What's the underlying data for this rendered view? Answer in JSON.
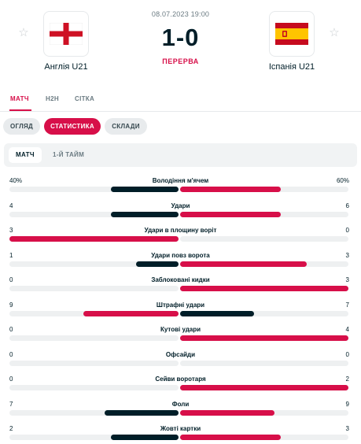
{
  "match": {
    "datetime": "08.07.2023 19:00",
    "score": "1-0",
    "status": "ПЕРЕРВА",
    "home": {
      "name": "Англія U21",
      "flag_icon": "england-flag-icon"
    },
    "away": {
      "name": "Іспанія U21",
      "flag_icon": "spain-flag-icon"
    }
  },
  "main_tabs": [
    {
      "label": "МАТЧ",
      "active": true
    },
    {
      "label": "H2H",
      "active": false
    },
    {
      "label": "СІТКА",
      "active": false
    }
  ],
  "sub_tabs": [
    {
      "label": "ОГЛЯД",
      "active": false
    },
    {
      "label": "СТАТИСТИКА",
      "active": true
    },
    {
      "label": "СКЛАДИ",
      "active": false
    }
  ],
  "period_tabs": [
    {
      "label": "МАТЧ",
      "active": true
    },
    {
      "label": "1-Й ТАЙМ",
      "active": false
    }
  ],
  "colors": {
    "accent": "#d70f49",
    "home_bar_winning": "#d70f49",
    "bar_losing": "#001e28"
  },
  "stats": [
    {
      "name": "Володіння м'ячем",
      "home": "40%",
      "away": "60%",
      "home_share": 0.4,
      "away_share": 0.6
    },
    {
      "name": "Удари",
      "home": "4",
      "away": "6",
      "home_share": 0.4,
      "away_share": 0.6
    },
    {
      "name": "Удари в площину воріт",
      "home": "3",
      "away": "0",
      "home_share": 1.0,
      "away_share": 0.0
    },
    {
      "name": "Удари повз ворота",
      "home": "1",
      "away": "3",
      "home_share": 0.25,
      "away_share": 0.75
    },
    {
      "name": "Заблоковані кидки",
      "home": "0",
      "away": "3",
      "home_share": 0.0,
      "away_share": 1.0
    },
    {
      "name": "Штрафні удари",
      "home": "9",
      "away": "7",
      "home_share": 0.5625,
      "away_share": 0.4375
    },
    {
      "name": "Кутові удари",
      "home": "0",
      "away": "4",
      "home_share": 0.0,
      "away_share": 1.0
    },
    {
      "name": "Офсайди",
      "home": "0",
      "away": "0",
      "home_share": 0.0,
      "away_share": 0.0
    },
    {
      "name": "Сейви воротаря",
      "home": "0",
      "away": "2",
      "home_share": 0.0,
      "away_share": 1.0
    },
    {
      "name": "Фоли",
      "home": "7",
      "away": "9",
      "home_share": 0.4375,
      "away_share": 0.5625
    },
    {
      "name": "Жовті картки",
      "home": "2",
      "away": "3",
      "home_share": 0.4,
      "away_share": 0.6
    }
  ]
}
